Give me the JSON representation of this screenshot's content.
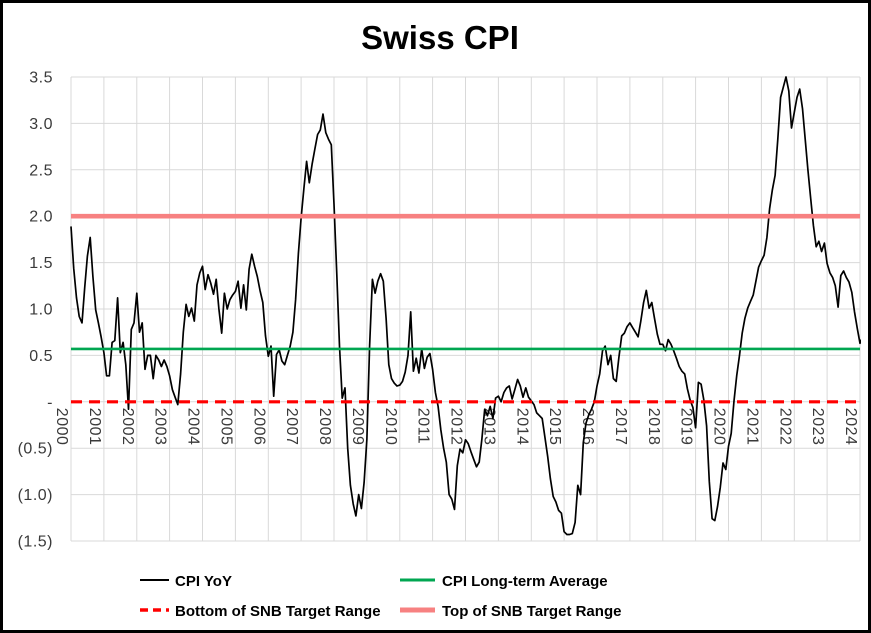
{
  "chart_data": {
    "type": "line",
    "title": "Swiss CPI",
    "xlabel": "",
    "ylabel": "",
    "ylim": [
      -1.5,
      3.5
    ],
    "grid": true,
    "legend_position": "bottom",
    "x_frequency": "monthly",
    "x_start_label": "2000-01",
    "x_end_label": "2024-02",
    "x_tick_labels": [
      "2000",
      "2001",
      "2002",
      "2003",
      "2004",
      "2005",
      "2006",
      "2007",
      "2008",
      "2009",
      "2010",
      "2011",
      "2012",
      "2013",
      "2014",
      "2015",
      "2016",
      "2017",
      "2018",
      "2019",
      "2020",
      "2021",
      "2022",
      "2023",
      "2024"
    ],
    "y_ticks": [
      {
        "label": "3.5",
        "value": 3.5
      },
      {
        "label": "3.0",
        "value": 3.0
      },
      {
        "label": "2.5",
        "value": 2.5
      },
      {
        "label": "2.0",
        "value": 2.0
      },
      {
        "label": "1.5",
        "value": 1.5
      },
      {
        "label": "1.0",
        "value": 1.0
      },
      {
        "label": "0.5",
        "value": 0.5
      },
      {
        "label": "-",
        "value": 0.0
      },
      {
        "label": "(0.5)",
        "value": -0.5
      },
      {
        "label": "(1.0)",
        "value": -1.0
      },
      {
        "label": "(1.5)",
        "value": -1.5
      }
    ],
    "series": [
      {
        "name": "CPI YoY",
        "type": "monthly-line",
        "color": "#000000",
        "style": "solid",
        "width": 1.7,
        "monthly_values": [
          1.89,
          1.44,
          1.12,
          0.92,
          0.85,
          1.23,
          1.57,
          1.77,
          1.35,
          0.99,
          0.85,
          0.7,
          0.53,
          0.28,
          0.28,
          0.64,
          0.66,
          1.12,
          0.53,
          0.64,
          0.4,
          -0.08,
          0.78,
          0.85,
          1.17,
          0.75,
          0.85,
          0.35,
          0.5,
          0.5,
          0.25,
          0.5,
          0.45,
          0.38,
          0.45,
          0.38,
          0.28,
          0.13,
          0.05,
          -0.03,
          0.3,
          0.75,
          1.05,
          0.92,
          1.01,
          0.87,
          1.26,
          1.39,
          1.46,
          1.21,
          1.37,
          1.28,
          1.16,
          1.32,
          1.0,
          0.74,
          1.17,
          1.0,
          1.1,
          1.15,
          1.19,
          1.3,
          1.01,
          1.26,
          0.99,
          1.43,
          1.59,
          1.46,
          1.35,
          1.2,
          1.07,
          0.71,
          0.49,
          0.6,
          0.06,
          0.51,
          0.56,
          0.44,
          0.4,
          0.5,
          0.6,
          0.75,
          1.1,
          1.6,
          1.98,
          2.3,
          2.59,
          2.36,
          2.56,
          2.72,
          2.88,
          2.93,
          3.1,
          2.9,
          2.83,
          2.77,
          2.13,
          1.4,
          0.6,
          0.04,
          0.15,
          -0.5,
          -0.9,
          -1.1,
          -1.23,
          -1.0,
          -1.15,
          -0.87,
          -0.4,
          0.6,
          1.32,
          1.17,
          1.3,
          1.38,
          1.3,
          0.9,
          0.4,
          0.25,
          0.2,
          0.17,
          0.18,
          0.22,
          0.32,
          0.5,
          0.97,
          0.33,
          0.47,
          0.31,
          0.57,
          0.36,
          0.48,
          0.52,
          0.35,
          0.1,
          -0.05,
          -0.3,
          -0.5,
          -0.65,
          -1.0,
          -1.05,
          -1.16,
          -0.69,
          -0.51,
          -0.55,
          -0.41,
          -0.45,
          -0.54,
          -0.62,
          -0.7,
          -0.65,
          -0.4,
          -0.08,
          -0.15,
          -0.05,
          -0.18,
          0.04,
          0.06,
          0.0,
          0.1,
          0.15,
          0.17,
          0.03,
          0.13,
          0.24,
          0.17,
          0.05,
          0.15,
          0.05,
          0.01,
          -0.03,
          -0.12,
          -0.15,
          -0.18,
          -0.38,
          -0.59,
          -0.83,
          -1.02,
          -1.08,
          -1.17,
          -1.2,
          -1.4,
          -1.43,
          -1.43,
          -1.42,
          -1.3,
          -0.9,
          -1.0,
          -0.44,
          -0.23,
          -0.14,
          -0.08,
          0.0,
          0.17,
          0.3,
          0.55,
          0.6,
          0.4,
          0.5,
          0.25,
          0.22,
          0.48,
          0.71,
          0.74,
          0.81,
          0.85,
          0.8,
          0.75,
          0.7,
          0.87,
          1.07,
          1.2,
          1.01,
          1.07,
          0.9,
          0.73,
          0.62,
          0.62,
          0.55,
          0.67,
          0.62,
          0.55,
          0.47,
          0.38,
          0.33,
          0.3,
          0.14,
          0.02,
          -0.06,
          -0.28,
          0.21,
          0.19,
          0.02,
          -0.26,
          -0.86,
          -1.26,
          -1.28,
          -1.13,
          -0.92,
          -0.66,
          -0.73,
          -0.48,
          -0.34,
          0.01,
          0.28,
          0.5,
          0.74,
          0.9,
          1.01,
          1.08,
          1.15,
          1.3,
          1.45,
          1.52,
          1.58,
          1.77,
          2.08,
          2.28,
          2.44,
          2.83,
          3.28,
          3.39,
          3.5,
          3.35,
          2.95,
          3.12,
          3.28,
          3.37,
          3.16,
          2.83,
          2.5,
          2.19,
          1.9,
          1.67,
          1.73,
          1.62,
          1.71,
          1.49,
          1.39,
          1.34,
          1.25,
          1.02,
          1.36,
          1.41,
          1.34,
          1.29,
          1.18,
          0.97,
          0.79,
          0.63,
          0.7
        ]
      },
      {
        "name": "CPI Long-term Average",
        "type": "horizontal-reference-line",
        "color": "#00A651",
        "style": "solid",
        "width": 2.6,
        "constant_value": 0.57
      },
      {
        "name": "Bottom of SNB Target Range",
        "type": "horizontal-reference-line",
        "color": "#FF0000",
        "style": "dashed",
        "width": 3.2,
        "constant_value": 0.0
      },
      {
        "name": "Top of SNB Target Range",
        "type": "horizontal-reference-line",
        "color": "#F78181",
        "style": "solid",
        "width": 4.6,
        "constant_value": 2.0
      }
    ],
    "colors": {
      "cpi_line": "#000000",
      "long_term_average": "#00A651",
      "bottom_target": "#FF0000",
      "top_target": "#F78181",
      "gridline": "#d9d9d9",
      "axis_text": "#3a3a3a"
    }
  }
}
